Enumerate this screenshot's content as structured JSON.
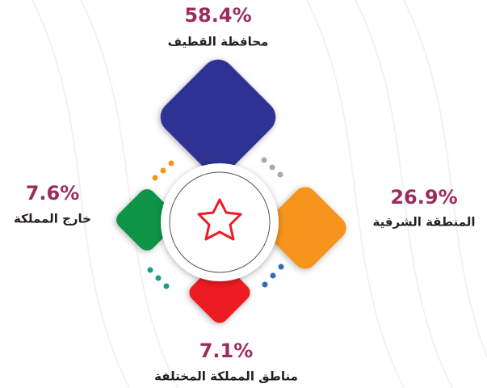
{
  "chart_data": {
    "type": "diamond",
    "categories": [
      "محافظة القطيف",
      "المنطقة الشرقية",
      "مناطق المملكة المختلفة",
      "خارج المملكة"
    ],
    "values": [
      58.4,
      26.9,
      7.1,
      7.6
    ],
    "value_labels": [
      "58.4%",
      "26.9%",
      "7.1%",
      "7.6%"
    ],
    "colors": [
      "#2e3192",
      "#f7941d",
      "#ed1c24",
      "#109447"
    ]
  }
}
